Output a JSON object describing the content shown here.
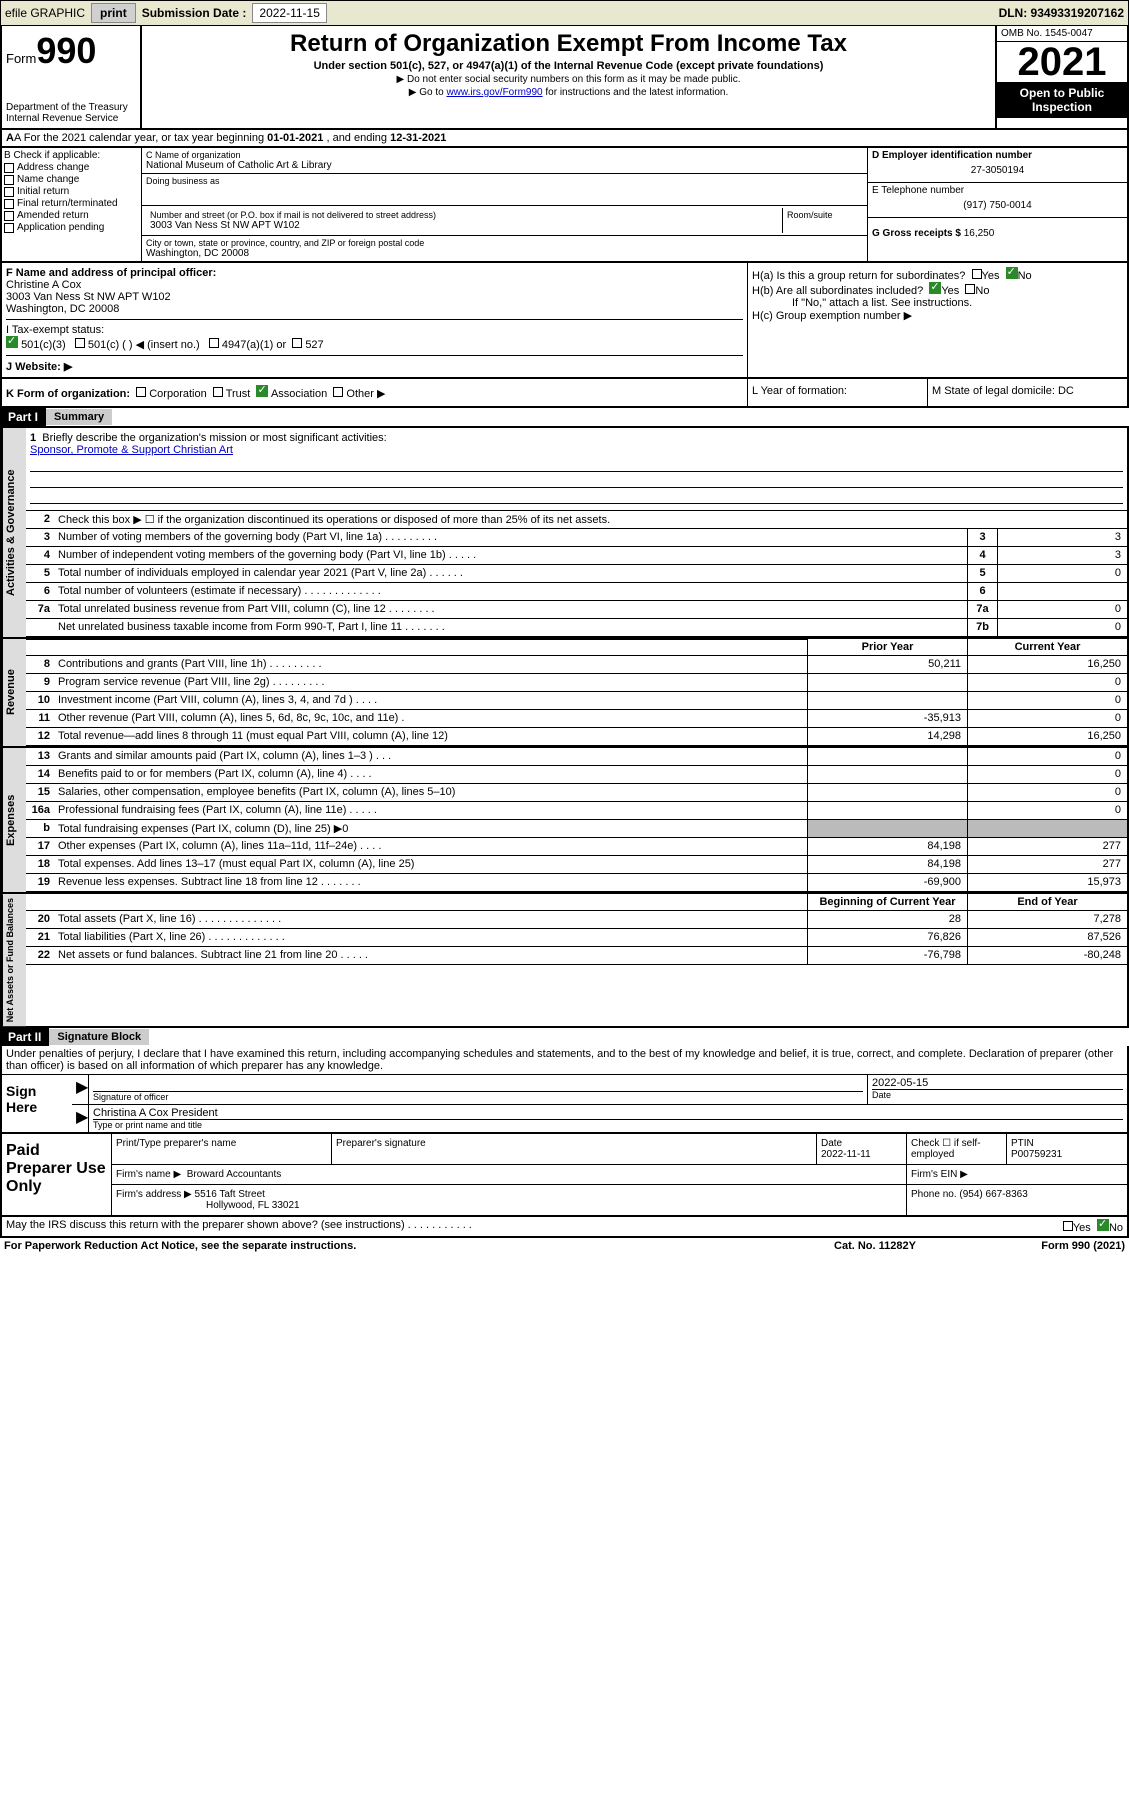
{
  "topbar": {
    "efile": "efile GRAPHIC",
    "print": "print",
    "sub_label": "Submission Date :",
    "sub_date": "2022-11-15",
    "dln": "DLN: 93493319207162"
  },
  "header": {
    "form_word": "Form",
    "form_num": "990",
    "dept": "Department of the Treasury",
    "irs": "Internal Revenue Service",
    "title": "Return of Organization Exempt From Income Tax",
    "sub": "Under section 501(c), 527, or 4947(a)(1) of the Internal Revenue Code (except private foundations)",
    "note1": "▶ Do not enter social security numbers on this form as it may be made public.",
    "note2_pre": "▶ Go to ",
    "note2_link": "www.irs.gov/Form990",
    "note2_post": " for instructions and the latest information.",
    "omb": "OMB No. 1545-0047",
    "year": "2021",
    "inspect": "Open to Public Inspection"
  },
  "rowA": {
    "text_pre": "A For the 2021 calendar year, or tax year beginning ",
    "begin": "01-01-2021",
    "mid": " , and ending ",
    "end": "12-31-2021"
  },
  "colB": {
    "label": "B Check if applicable:",
    "opts": [
      "Address change",
      "Name change",
      "Initial return",
      "Final return/terminated",
      "Amended return",
      "Application pending"
    ]
  },
  "colC": {
    "name_label": "C Name of organization",
    "name": "National Museum of Catholic Art & Library",
    "dba_label": "Doing business as",
    "dba": "",
    "street_label": "Number and street (or P.O. box if mail is not delivered to street address)",
    "room_label": "Room/suite",
    "street": "3003 Van Ness St NW APT W102",
    "city_label": "City or town, state or province, country, and ZIP or foreign postal code",
    "city": "Washington, DC  20008"
  },
  "colD": {
    "ein_label": "D Employer identification number",
    "ein": "27-3050194",
    "tel_label": "E Telephone number",
    "tel": "(917) 750-0014",
    "gross_label": "G Gross receipts $",
    "gross": "16,250"
  },
  "secF": {
    "label": "F Name and address of principal officer:",
    "name": "Christine A Cox",
    "addr1": "3003 Van Ness St NW APT W102",
    "addr2": "Washington, DC  20008"
  },
  "secH": {
    "ha": "H(a)  Is this a group return for subordinates?",
    "hb": "H(b)  Are all subordinates included?",
    "hb_note": "If \"No,\" attach a list. See instructions.",
    "hc": "H(c)  Group exemption number ▶",
    "yes": "Yes",
    "no": "No"
  },
  "secI": {
    "label": "I   Tax-exempt status:",
    "o1": "501(c)(3)",
    "o2": "501(c) (   ) ◀ (insert no.)",
    "o3": "4947(a)(1) or",
    "o4": "527"
  },
  "secJ": {
    "label": "J   Website: ▶",
    "val": ""
  },
  "rowK": {
    "label": "K Form of organization:",
    "corp": "Corporation",
    "trust": "Trust",
    "assoc": "Association",
    "other": "Other ▶",
    "L": "L Year of formation:",
    "M": "M State of legal domicile: DC"
  },
  "part1": {
    "hdr": "Part I",
    "title": "Summary",
    "tab_gov": "Activities & Governance",
    "tab_rev": "Revenue",
    "tab_exp": "Expenses",
    "tab_net": "Net Assets or Fund Balances",
    "l1": "Briefly describe the organization's mission or most significant activities:",
    "mission": "Sponsor, Promote & Support Christian Art",
    "l2": "Check this box ▶ ☐  if the organization discontinued its operations or disposed of more than 25% of its net assets.",
    "lines_gov": [
      {
        "n": "3",
        "d": "Number of voting members of the governing body (Part VI, line 1a)  .   .   .   .   .   .   .   .   .",
        "b": "3",
        "v": "3"
      },
      {
        "n": "4",
        "d": "Number of independent voting members of the governing body (Part VI, line 1b)  .   .   .   .   .",
        "b": "4",
        "v": "3"
      },
      {
        "n": "5",
        "d": "Total number of individuals employed in calendar year 2021 (Part V, line 2a)  .   .   .   .   .   .",
        "b": "5",
        "v": "0"
      },
      {
        "n": "6",
        "d": "Total number of volunteers (estimate if necessary)  .   .   .   .   .   .   .   .   .   .   .   .   .",
        "b": "6",
        "v": ""
      },
      {
        "n": "7a",
        "d": "Total unrelated business revenue from Part VIII, column (C), line 12  .   .   .   .   .   .   .   .",
        "b": "7a",
        "v": "0"
      },
      {
        "n": "",
        "d": "Net unrelated business taxable income from Form 990-T, Part I, line 11  .   .   .   .   .   .   .",
        "b": "7b",
        "v": "0"
      }
    ],
    "prior_hdr": "Prior Year",
    "curr_hdr": "Current Year",
    "lines_rev": [
      {
        "n": "8",
        "d": "Contributions and grants (Part VIII, line 1h)   .   .   .   .   .   .   .   .   .",
        "p": "50,211",
        "c": "16,250"
      },
      {
        "n": "9",
        "d": "Program service revenue (Part VIII, line 2g)   .   .   .   .   .   .   .   .   .",
        "p": "",
        "c": "0"
      },
      {
        "n": "10",
        "d": "Investment income (Part VIII, column (A), lines 3, 4, and 7d )   .   .   .   .",
        "p": "",
        "c": "0"
      },
      {
        "n": "11",
        "d": "Other revenue (Part VIII, column (A), lines 5, 6d, 8c, 9c, 10c, and 11e)   .",
        "p": "-35,913",
        "c": "0"
      },
      {
        "n": "12",
        "d": "Total revenue—add lines 8 through 11 (must equal Part VIII, column (A), line 12)",
        "p": "14,298",
        "c": "16,250"
      }
    ],
    "lines_exp": [
      {
        "n": "13",
        "d": "Grants and similar amounts paid (Part IX, column (A), lines 1–3 )   .   .   .",
        "p": "",
        "c": "0"
      },
      {
        "n": "14",
        "d": "Benefits paid to or for members (Part IX, column (A), line 4)   .   .   .   .",
        "p": "",
        "c": "0"
      },
      {
        "n": "15",
        "d": "Salaries, other compensation, employee benefits (Part IX, column (A), lines 5–10)",
        "p": "",
        "c": "0"
      },
      {
        "n": "16a",
        "d": "Professional fundraising fees (Part IX, column (A), line 11e)   .   .   .   .   .",
        "p": "",
        "c": "0"
      },
      {
        "n": "b",
        "d": "Total fundraising expenses (Part IX, column (D), line 25) ▶0",
        "p": "grey",
        "c": "grey"
      },
      {
        "n": "17",
        "d": "Other expenses (Part IX, column (A), lines 11a–11d, 11f–24e)   .   .   .   .",
        "p": "84,198",
        "c": "277"
      },
      {
        "n": "18",
        "d": "Total expenses. Add lines 13–17 (must equal Part IX, column (A), line 25)",
        "p": "84,198",
        "c": "277"
      },
      {
        "n": "19",
        "d": "Revenue less expenses. Subtract line 18 from line 12   .   .   .   .   .   .   .",
        "p": "-69,900",
        "c": "15,973"
      }
    ],
    "beg_hdr": "Beginning of Current Year",
    "end_hdr": "End of Year",
    "lines_net": [
      {
        "n": "20",
        "d": "Total assets (Part X, line 16)   .   .   .   .   .   .   .   .   .   .   .   .   .   .",
        "p": "28",
        "c": "7,278"
      },
      {
        "n": "21",
        "d": "Total liabilities (Part X, line 26)   .   .   .   .   .   .   .   .   .   .   .   .   .",
        "p": "76,826",
        "c": "87,526"
      },
      {
        "n": "22",
        "d": "Net assets or fund balances. Subtract line 21 from line 20   .   .   .   .   .",
        "p": "-76,798",
        "c": "-80,248"
      }
    ]
  },
  "part2": {
    "hdr": "Part II",
    "title": "Signature Block",
    "decl": "Under penalties of perjury, I declare that I have examined this return, including accompanying schedules and statements, and to the best of my knowledge and belief, it is true, correct, and complete. Declaration of preparer (other than officer) is based on all information of which preparer has any knowledge.",
    "sign_here": "Sign Here",
    "sig_officer": "Signature of officer",
    "sig_date": "2022-05-15",
    "date_label": "Date",
    "sig_name": "Christina A Cox  President",
    "sig_name_label": "Type or print name and title",
    "paid": "Paid Preparer Use Only",
    "p_name_label": "Print/Type preparer's name",
    "p_sig_label": "Preparer's signature",
    "p_date_label": "Date",
    "p_date": "2022-11-11",
    "p_check": "Check ☐ if self-employed",
    "ptin_label": "PTIN",
    "ptin": "P00759231",
    "firm_name_label": "Firm's name    ▶",
    "firm_name": "Broward Accountants",
    "firm_ein_label": "Firm's EIN ▶",
    "firm_addr_label": "Firm's address ▶",
    "firm_addr1": "5516 Taft Street",
    "firm_addr2": "Hollywood, FL  33021",
    "firm_phone_label": "Phone no.",
    "firm_phone": "(954) 667-8363",
    "may_irs": "May the IRS discuss this return with the preparer shown above? (see instructions)   .   .   .   .   .   .   .   .   .   .   .",
    "paperwork": "For Paperwork Reduction Act Notice, see the separate instructions.",
    "catno": "Cat. No. 11282Y",
    "formno": "Form 990 (2021)"
  }
}
